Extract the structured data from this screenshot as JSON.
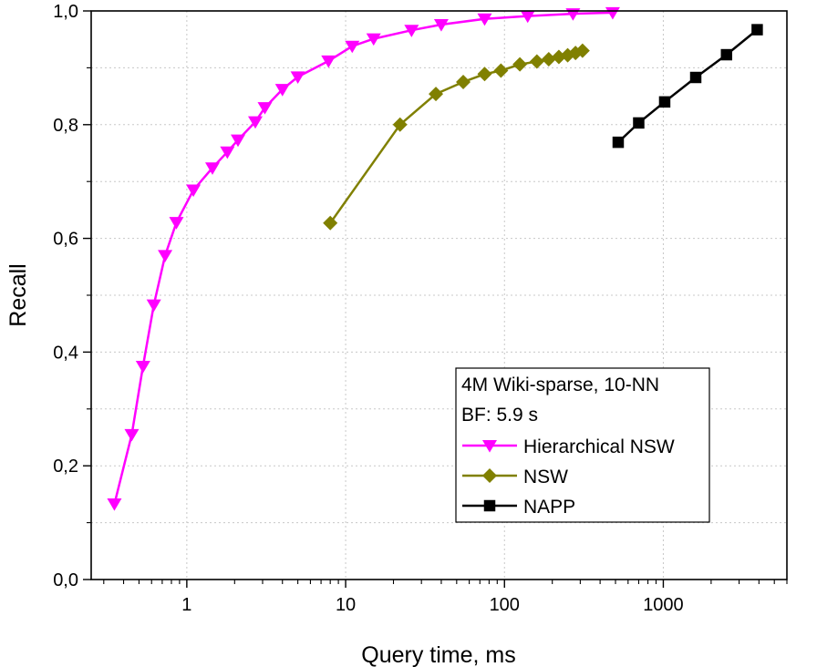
{
  "chart_data": {
    "type": "line",
    "xlabel": "Query time, ms",
    "ylabel": "Recall",
    "xscale": "log",
    "xlim": [
      0.25,
      6000
    ],
    "ylim": [
      0,
      1.0
    ],
    "xticks": [
      1,
      10,
      100,
      1000
    ],
    "xtick_labels": [
      "1",
      "10",
      "100",
      "1000"
    ],
    "yticks": [
      0,
      0.2,
      0.4,
      0.6,
      0.8,
      1.0
    ],
    "ytick_labels": [
      "0,0",
      "0,2",
      "0,4",
      "0,6",
      "0,8",
      "1,0"
    ],
    "grid": true,
    "legend_position": "bottom-right",
    "legend_title_lines": [
      "4M Wiki-sparse, 10-NN",
      "BF: 5.9 s"
    ],
    "series": [
      {
        "name": "Hierarchical NSW",
        "color": "#ff00ff",
        "marker": "triangle-down",
        "x": [
          0.35,
          0.45,
          0.53,
          0.62,
          0.73,
          0.86,
          1.1,
          1.45,
          1.8,
          2.1,
          2.7,
          3.1,
          4.0,
          5.0,
          7.8,
          11,
          15,
          26,
          40,
          75,
          140,
          270,
          480
        ],
        "y": [
          0.133,
          0.255,
          0.375,
          0.483,
          0.57,
          0.628,
          0.685,
          0.724,
          0.752,
          0.773,
          0.805,
          0.83,
          0.862,
          0.884,
          0.912,
          0.938,
          0.951,
          0.966,
          0.976,
          0.986,
          0.991,
          0.995,
          0.997
        ]
      },
      {
        "name": "NSW",
        "color": "#808000",
        "marker": "diamond",
        "x": [
          8,
          22,
          37,
          55,
          75,
          95,
          125,
          160,
          190,
          220,
          250,
          280,
          310
        ],
        "y": [
          0.627,
          0.8,
          0.854,
          0.875,
          0.889,
          0.895,
          0.906,
          0.911,
          0.915,
          0.919,
          0.922,
          0.926,
          0.93
        ]
      },
      {
        "name": "NAPP",
        "color": "#000000",
        "marker": "square",
        "x": [
          520,
          700,
          1020,
          1600,
          2500,
          3900
        ],
        "y": [
          0.769,
          0.803,
          0.84,
          0.883,
          0.923,
          0.967
        ]
      }
    ]
  }
}
